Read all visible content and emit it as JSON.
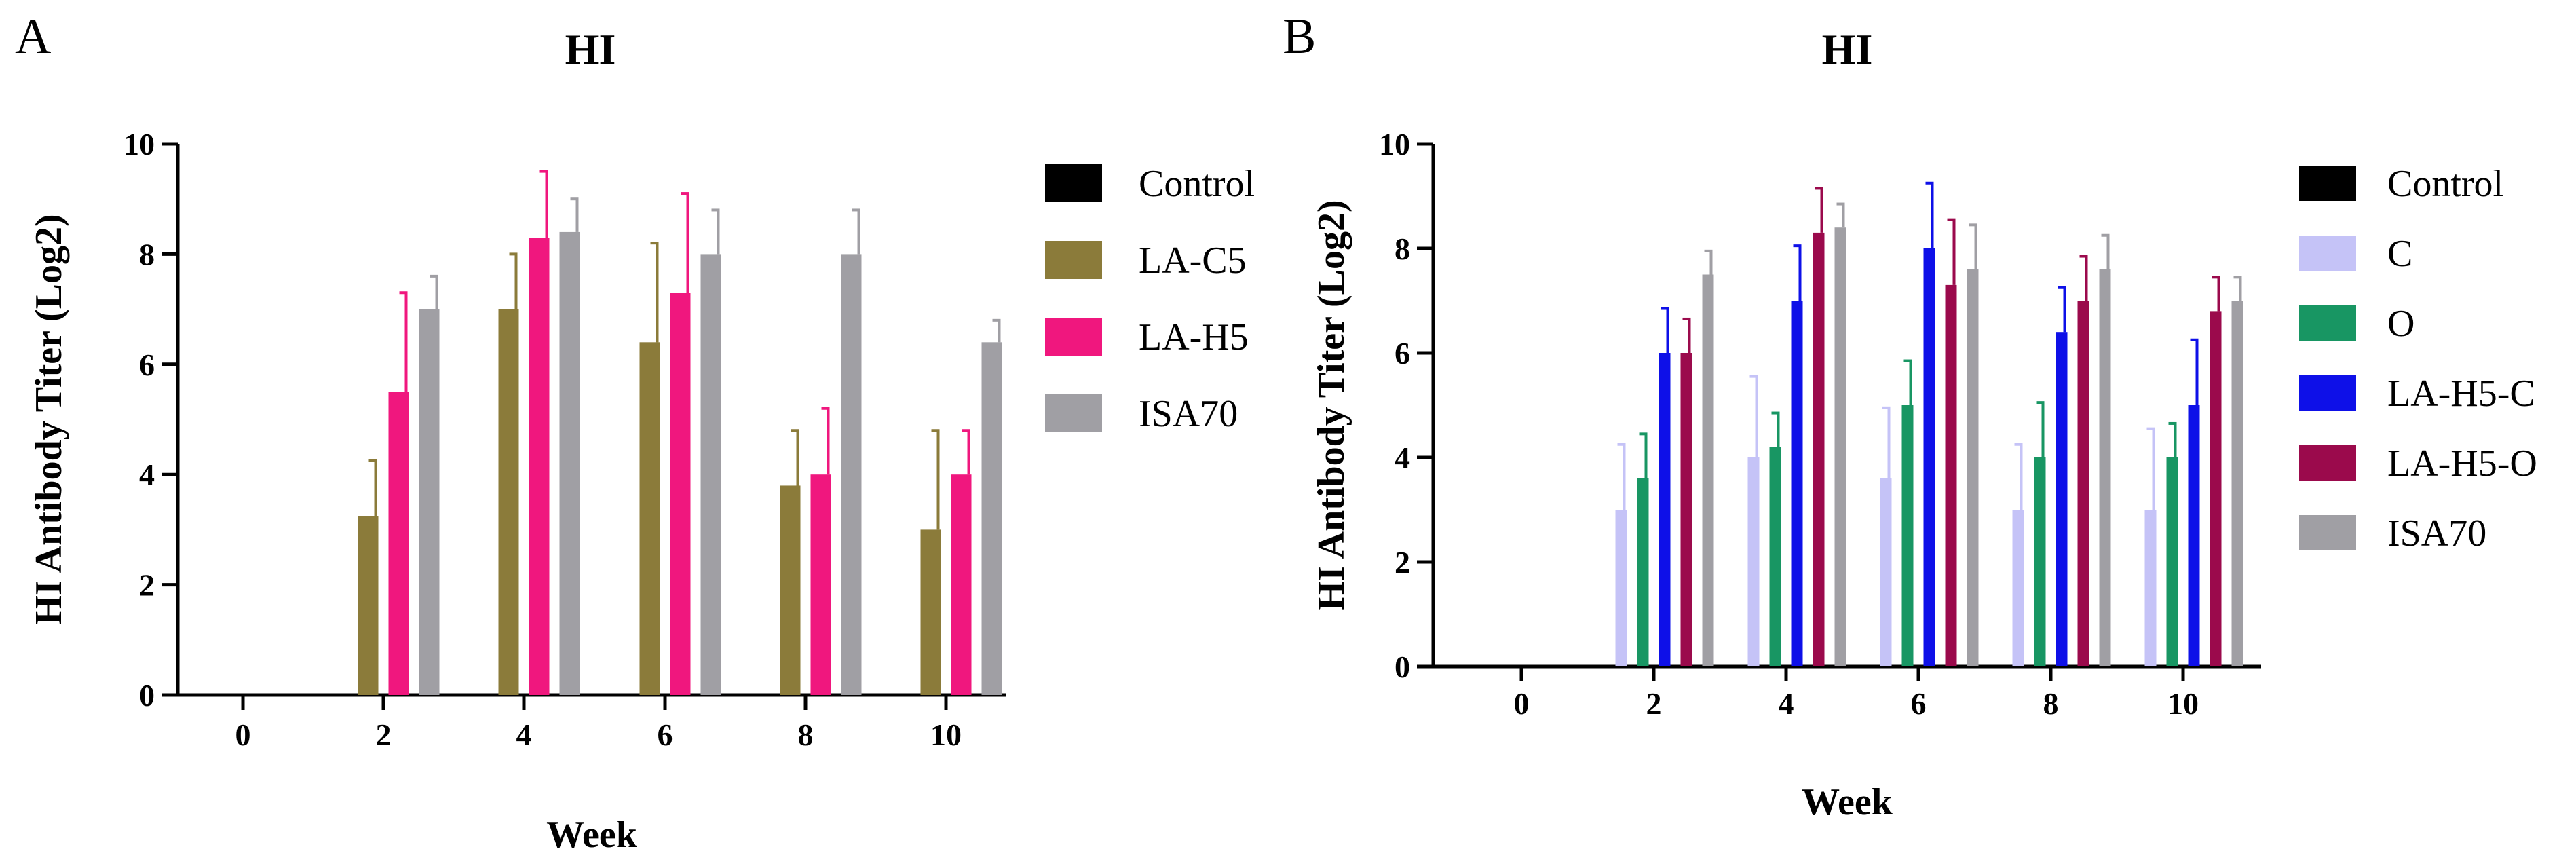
{
  "chart_data": [
    {
      "panel": "A",
      "type": "bar",
      "title": "HI",
      "xlabel": "Week",
      "ylabel": "HI Antibody Titer (Log2)",
      "categories": [
        "0",
        "2",
        "4",
        "6",
        "8",
        "10"
      ],
      "ylim": [
        0,
        10
      ],
      "yticks": [
        "0",
        "2",
        "4",
        "6",
        "8",
        "10"
      ],
      "legend_position": "right",
      "series": [
        {
          "name": "Control",
          "color": "#000000",
          "values": [
            0,
            0,
            0,
            0,
            0,
            0
          ],
          "errors": [
            0,
            0,
            0,
            0,
            0,
            0
          ]
        },
        {
          "name": "LA-C5",
          "color": "#8B7B3A",
          "values": [
            0,
            3.25,
            7.0,
            6.4,
            3.8,
            3.0
          ],
          "errors": [
            0,
            1.0,
            1.0,
            1.8,
            1.0,
            1.8
          ]
        },
        {
          "name": "LA-H5",
          "color": "#F0177E",
          "values": [
            0,
            5.5,
            8.3,
            7.3,
            4.0,
            4.0
          ],
          "errors": [
            0,
            1.8,
            1.2,
            1.8,
            1.2,
            0.8
          ]
        },
        {
          "name": "ISA70",
          "color": "#A09FA4",
          "values": [
            0,
            7.0,
            8.4,
            8.0,
            8.0,
            6.4
          ],
          "errors": [
            0,
            0.6,
            0.6,
            0.8,
            0.8,
            0.4
          ]
        }
      ]
    },
    {
      "panel": "B",
      "type": "bar",
      "title": "HI",
      "xlabel": "Week",
      "ylabel": "HI Antibody Titer (Log2)",
      "categories": [
        "0",
        "2",
        "4",
        "6",
        "8",
        "10"
      ],
      "ylim": [
        0,
        10
      ],
      "yticks": [
        "0",
        "2",
        "4",
        "6",
        "8",
        "10"
      ],
      "legend_position": "right",
      "series": [
        {
          "name": "Control",
          "color": "#000000",
          "values": [
            0,
            0,
            0,
            0,
            0,
            0
          ],
          "errors": [
            0,
            0,
            0,
            0,
            0,
            0
          ]
        },
        {
          "name": "C",
          "color": "#C5C3F7",
          "values": [
            0,
            3.0,
            4.0,
            3.6,
            3.0,
            3.0
          ],
          "errors": [
            0,
            1.25,
            1.55,
            1.35,
            1.25,
            1.55
          ]
        },
        {
          "name": "O",
          "color": "#189663",
          "values": [
            0,
            3.6,
            4.2,
            5.0,
            4.0,
            4.0
          ],
          "errors": [
            0,
            0.85,
            0.65,
            0.85,
            1.05,
            0.65
          ]
        },
        {
          "name": "LA-H5-C",
          "color": "#0E10E8",
          "values": [
            0,
            6.0,
            7.0,
            8.0,
            6.4,
            5.0
          ],
          "errors": [
            0,
            0.85,
            1.05,
            1.25,
            0.85,
            1.25
          ]
        },
        {
          "name": "LA-H5-O",
          "color": "#9B0A4C",
          "values": [
            0,
            6.0,
            8.3,
            7.3,
            7.0,
            6.8
          ],
          "errors": [
            0,
            0.65,
            0.85,
            1.25,
            0.85,
            0.65
          ]
        },
        {
          "name": "ISA70",
          "color": "#A09FA4",
          "values": [
            0,
            7.5,
            8.4,
            7.6,
            7.6,
            7.0
          ],
          "errors": [
            0,
            0.45,
            0.45,
            0.85,
            0.65,
            0.45
          ]
        }
      ]
    }
  ]
}
